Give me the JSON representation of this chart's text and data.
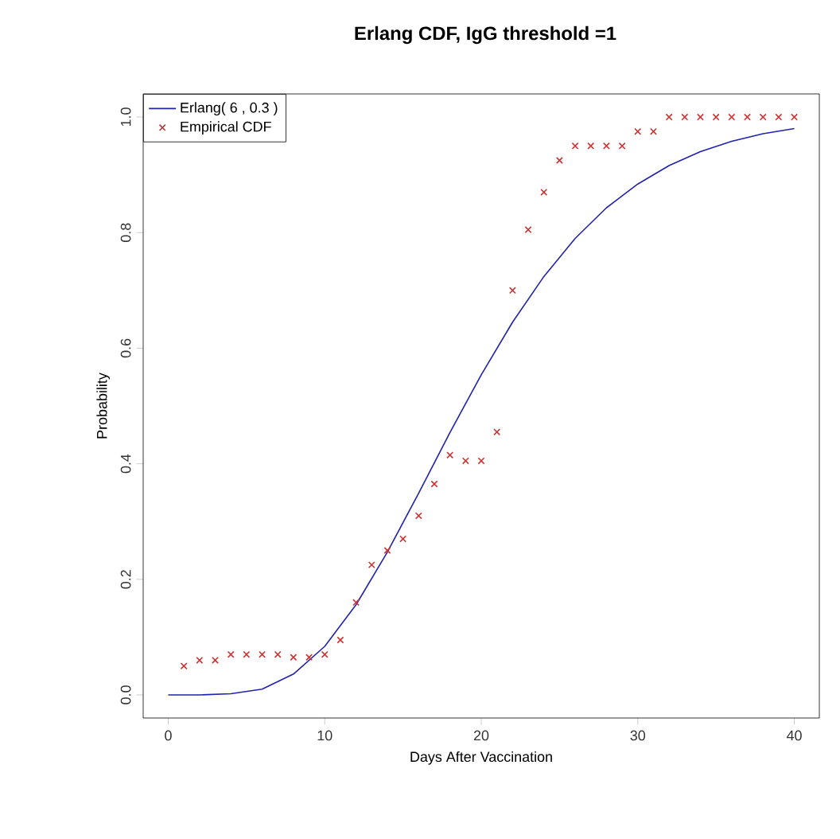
{
  "chart_data": {
    "type": "line",
    "title": "Erlang CDF, IgG threshold =1",
    "xlabel": "Days After Vaccination",
    "ylabel": "Probability",
    "xlim": [
      -1.6,
      41.6
    ],
    "ylim": [
      -0.04,
      1.04
    ],
    "xticks": [
      0,
      10,
      20,
      30,
      40
    ],
    "yticks": [
      {
        "value": 0,
        "label": "0.0"
      },
      {
        "value": 0.2,
        "label": "0.2"
      },
      {
        "value": 0.4,
        "label": "0.4"
      },
      {
        "value": 0.6,
        "label": "0.6"
      },
      {
        "value": 0.8,
        "label": "0.8"
      },
      {
        "value": 1,
        "label": "1.0"
      }
    ],
    "grid": false,
    "legend": "top left",
    "series": [
      {
        "name": "Erlang( 6 , 0.3 )",
        "color": "#2222b0",
        "line_style": "solid",
        "marker": "none",
        "x": [
          0,
          2,
          4,
          6,
          8,
          10,
          12,
          14,
          16,
          18,
          20,
          22,
          24,
          26,
          28,
          30,
          32,
          34,
          36,
          38,
          40
        ],
        "values": [
          0,
          0,
          0.002,
          0.01,
          0.036,
          0.084,
          0.156,
          0.247,
          0.349,
          0.454,
          0.554,
          0.645,
          0.724,
          0.79,
          0.843,
          0.884,
          0.916,
          0.94,
          0.958,
          0.971,
          0.98
        ]
      },
      {
        "name": "Empirical CDF",
        "type": "scatter",
        "color": "#cc3333",
        "marker": "cross",
        "x": [
          1,
          2,
          3,
          4,
          5,
          6,
          7,
          8,
          9,
          10,
          11,
          12,
          13,
          14,
          15,
          16,
          17,
          18,
          19,
          20,
          21,
          22,
          23,
          24,
          25,
          26,
          27,
          28,
          29,
          30,
          31,
          32,
          33,
          34,
          35,
          36,
          37,
          38,
          39,
          40
        ],
        "values": [
          0.05,
          0.06,
          0.06,
          0.07,
          0.07,
          0.07,
          0.07,
          0.065,
          0.065,
          0.07,
          0.095,
          0.16,
          0.225,
          0.25,
          0.27,
          0.31,
          0.365,
          0.415,
          0.405,
          0.405,
          0.455,
          0.7,
          0.805,
          0.87,
          0.925,
          0.95,
          0.95,
          0.95,
          0.95,
          0.975,
          0.975,
          1,
          1,
          1,
          1,
          1,
          1,
          1,
          1,
          1
        ]
      }
    ]
  }
}
